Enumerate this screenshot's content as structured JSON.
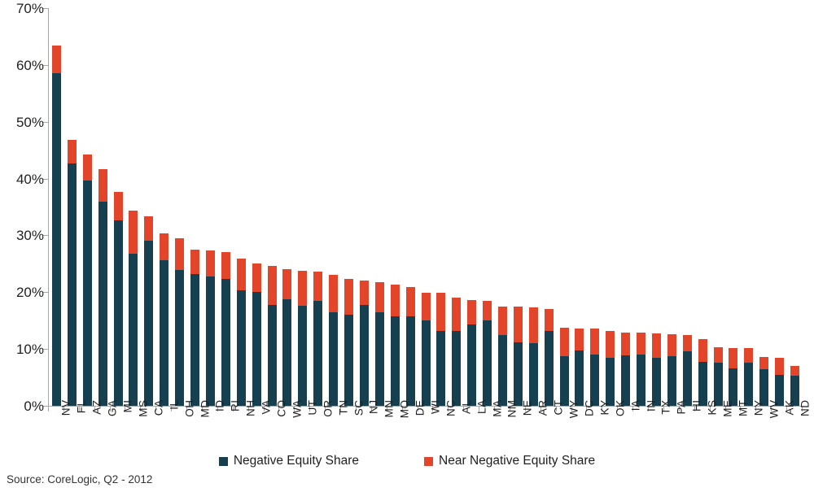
{
  "chart_data": {
    "type": "bar",
    "stacked": true,
    "title": "",
    "xlabel": "",
    "ylabel": "",
    "ylim": [
      0,
      70
    ],
    "grid": false,
    "legend_position": "bottom",
    "y_ticks": [
      "0%",
      "10%",
      "20%",
      "30%",
      "40%",
      "50%",
      "60%",
      "70%"
    ],
    "categories": [
      "NV",
      "FL",
      "AZ",
      "GA",
      "MI",
      "MS",
      "CA",
      "IL",
      "OH",
      "MD",
      "ID",
      "RI",
      "NH",
      "VA",
      "CO",
      "WA",
      "UT",
      "OR",
      "TN",
      "SC",
      "NJ",
      "MN",
      "MO",
      "DE",
      "WI",
      "NC",
      "AL",
      "LA",
      "MA",
      "NM",
      "NE",
      "AR",
      "CT",
      "WY",
      "DC",
      "KY",
      "OK",
      "IA",
      "IN",
      "TX",
      "PA",
      "HI",
      "KS",
      "ME",
      "MT",
      "NY",
      "WV",
      "AK",
      "ND"
    ],
    "series": [
      {
        "name": "Negative Equity Share",
        "color": "#16404F",
        "values": [
          58.6,
          42.6,
          39.7,
          35.9,
          32.7,
          26.7,
          29.0,
          25.6,
          23.9,
          23.2,
          22.8,
          22.3,
          20.4,
          20.0,
          17.7,
          18.7,
          17.6,
          18.4,
          16.4,
          16.1,
          17.8,
          16.4,
          15.8,
          15.7,
          15.0,
          13.2,
          13.2,
          14.3,
          15.1,
          12.5,
          11.2,
          11.0,
          13.2,
          8.8,
          9.8,
          9.0,
          8.4,
          8.9,
          9.0,
          8.4,
          8.7,
          9.6,
          7.7,
          7.6,
          6.6,
          7.6,
          6.4,
          5.5,
          5.3
        ]
      },
      {
        "name": "Near Negative Equity Share",
        "color": "#E3452A",
        "values": [
          4.8,
          4.2,
          4.6,
          5.8,
          5.0,
          7.7,
          4.3,
          4.7,
          5.6,
          4.3,
          4.6,
          4.7,
          5.5,
          5.1,
          6.9,
          5.4,
          6.2,
          5.2,
          6.6,
          6.2,
          4.2,
          5.3,
          5.5,
          5.2,
          4.9,
          6.7,
          5.9,
          4.3,
          3.4,
          5.0,
          6.2,
          6.3,
          3.8,
          5.0,
          3.8,
          4.6,
          4.8,
          4.0,
          3.9,
          4.3,
          3.9,
          2.9,
          4.1,
          2.7,
          3.6,
          2.5,
          2.2,
          3.0,
          1.7
        ]
      }
    ]
  },
  "legend": {
    "items": [
      {
        "label": "Negative Equity Share",
        "color": "#16404F"
      },
      {
        "label": "Near Negative Equity Share",
        "color": "#E3452A"
      }
    ]
  },
  "source_note": "Source: CoreLogic, Q2 - 2012",
  "colors": {
    "axis": "#a6a6a6",
    "text": "#1f1f1f",
    "background": "#ffffff"
  }
}
